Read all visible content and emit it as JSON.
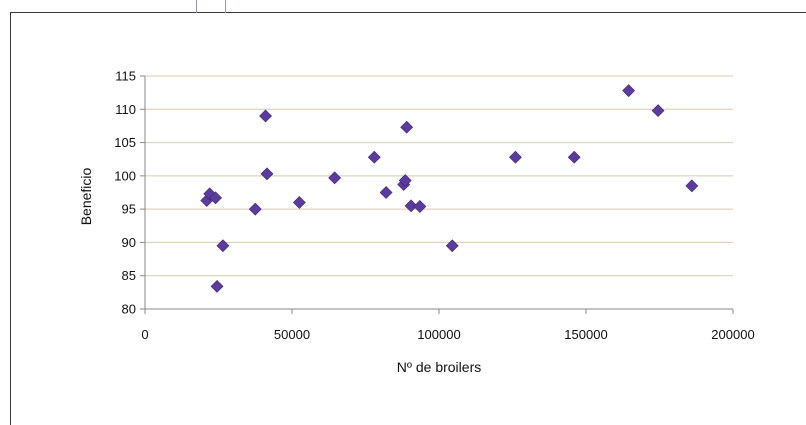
{
  "chart_data": {
    "type": "scatter",
    "title": "",
    "xlabel": "Nº de broilers",
    "ylabel": "Beneficio",
    "xlim": [
      0,
      200000
    ],
    "ylim": [
      80,
      115
    ],
    "x_ticks": [
      0,
      50000,
      100000,
      150000,
      200000
    ],
    "y_ticks": [
      80,
      85,
      90,
      95,
      100,
      105,
      110,
      115
    ],
    "x_tick_labels": [
      "0",
      "50000",
      "100000",
      "150000",
      "200000"
    ],
    "y_tick_labels": [
      "80",
      "85",
      "90",
      "95",
      "100",
      "105",
      "110",
      "115"
    ],
    "grid": "horizontal",
    "legend": "none",
    "marker": "diamond",
    "marker_color": "#5b3c9c",
    "points": [
      {
        "x": 21000,
        "y": 96.3
      },
      {
        "x": 22000,
        "y": 97.3
      },
      {
        "x": 24000,
        "y": 96.7
      },
      {
        "x": 24500,
        "y": 83.4
      },
      {
        "x": 26500,
        "y": 89.5
      },
      {
        "x": 37500,
        "y": 95.0
      },
      {
        "x": 41000,
        "y": 109.0
      },
      {
        "x": 41500,
        "y": 100.3
      },
      {
        "x": 52500,
        "y": 96.0
      },
      {
        "x": 64500,
        "y": 99.7
      },
      {
        "x": 78000,
        "y": 102.8
      },
      {
        "x": 82000,
        "y": 97.5
      },
      {
        "x": 88000,
        "y": 98.7
      },
      {
        "x": 88500,
        "y": 99.3
      },
      {
        "x": 89000,
        "y": 107.3
      },
      {
        "x": 90500,
        "y": 95.5
      },
      {
        "x": 93500,
        "y": 95.4
      },
      {
        "x": 104500,
        "y": 89.5
      },
      {
        "x": 126000,
        "y": 102.8
      },
      {
        "x": 146000,
        "y": 102.8
      },
      {
        "x": 164500,
        "y": 112.8
      },
      {
        "x": 174500,
        "y": 109.8
      },
      {
        "x": 186000,
        "y": 98.5
      }
    ]
  }
}
